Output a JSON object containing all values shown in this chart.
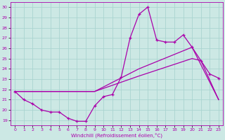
{
  "background_color": "#cce8e4",
  "grid_color": "#aad4d0",
  "line_color": "#aa00aa",
  "xlabel": "Windchill (Refroidissement éolien,°C)",
  "xlim": [
    -0.5,
    23.5
  ],
  "ylim": [
    18.5,
    30.5
  ],
  "yticks": [
    19,
    20,
    21,
    22,
    23,
    24,
    25,
    26,
    27,
    28,
    29,
    30
  ],
  "xticks": [
    0,
    1,
    2,
    3,
    4,
    5,
    6,
    7,
    8,
    9,
    10,
    11,
    12,
    13,
    14,
    15,
    16,
    17,
    18,
    19,
    20,
    21,
    22,
    23
  ],
  "line1_x": [
    0,
    1,
    2,
    3,
    4,
    5,
    6,
    7,
    8,
    9,
    10,
    11,
    12,
    13,
    14,
    15,
    16,
    17,
    18,
    19,
    20,
    21,
    22,
    23
  ],
  "line1_y": [
    21.8,
    21.0,
    20.6,
    20.0,
    19.8,
    19.8,
    19.2,
    18.9,
    18.9,
    20.4,
    21.3,
    21.5,
    23.2,
    27.0,
    29.3,
    30.0,
    26.8,
    26.6,
    26.6,
    27.3,
    26.1,
    24.8,
    23.5,
    23.1
  ],
  "line2_x": [
    0,
    9,
    14,
    20,
    23
  ],
  "line2_y": [
    21.8,
    21.8,
    24.0,
    26.1,
    21.0
  ],
  "line3_x": [
    0,
    9,
    14,
    20,
    21,
    23
  ],
  "line3_y": [
    21.8,
    21.8,
    23.3,
    25.0,
    24.8,
    21.0
  ]
}
